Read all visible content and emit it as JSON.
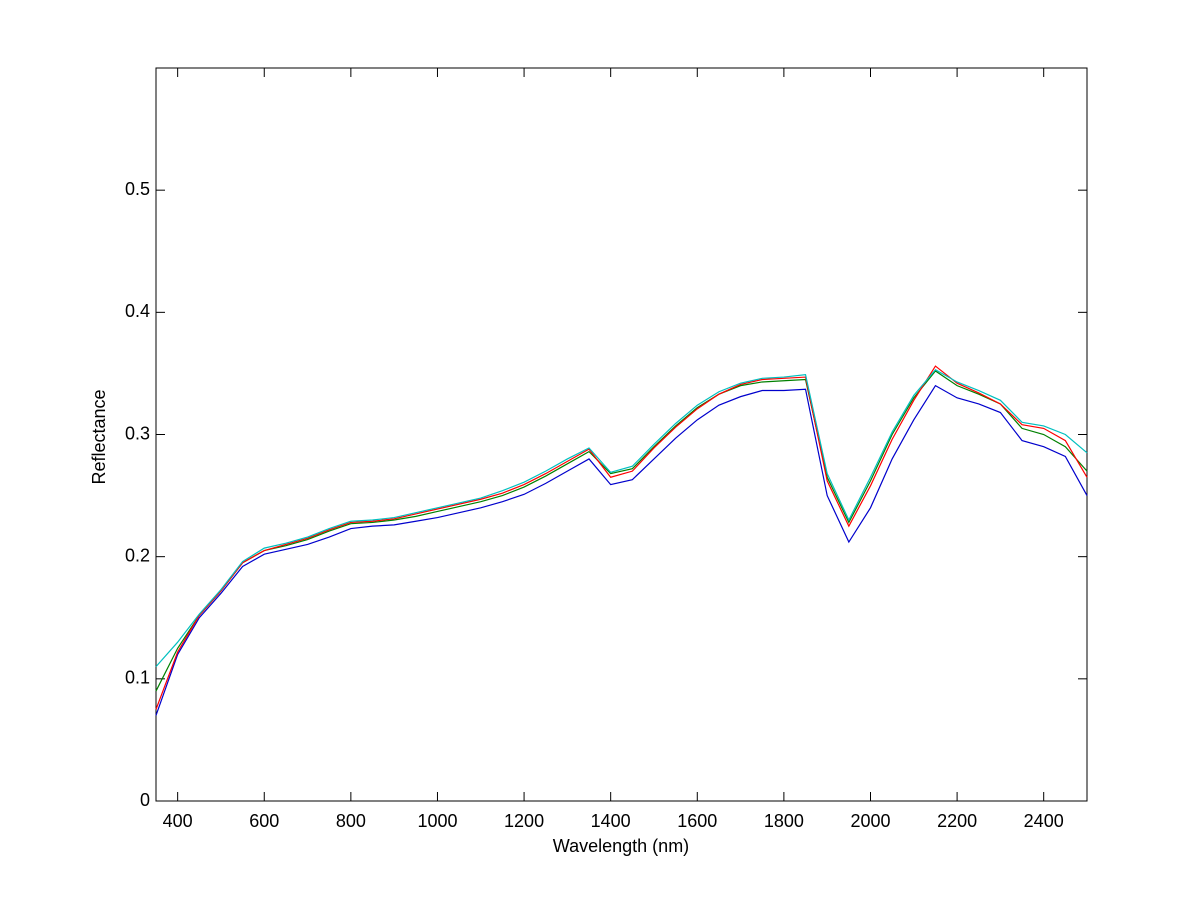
{
  "chart_data": {
    "type": "line",
    "x_label": "Wavelength (nm)",
    "y_label": "Reflectance",
    "x": [
      350,
      400,
      450,
      500,
      550,
      600,
      650,
      700,
      750,
      800,
      850,
      900,
      950,
      1000,
      1050,
      1100,
      1150,
      1200,
      1250,
      1300,
      1350,
      1400,
      1450,
      1500,
      1550,
      1600,
      1650,
      1700,
      1750,
      1800,
      1850,
      1900,
      1950,
      2000,
      2050,
      2100,
      2150,
      2200,
      2250,
      2300,
      2350,
      2400,
      2450,
      2500
    ],
    "series": [
      {
        "color": "#0000cc",
        "values": [
          0.07,
          0.12,
          0.15,
          0.17,
          0.192,
          0.202,
          0.206,
          0.21,
          0.216,
          0.223,
          0.225,
          0.226,
          0.229,
          0.232,
          0.236,
          0.24,
          0.245,
          0.251,
          0.26,
          0.27,
          0.28,
          0.259,
          0.263,
          0.28,
          0.297,
          0.312,
          0.324,
          0.331,
          0.336,
          0.336,
          0.337,
          0.25,
          0.212,
          0.24,
          0.28,
          0.312,
          0.34,
          0.33,
          0.325,
          0.318,
          0.295,
          0.29,
          0.282,
          0.25
        ]
      },
      {
        "color": "#008000",
        "values": [
          0.09,
          0.125,
          0.152,
          0.172,
          0.195,
          0.205,
          0.209,
          0.214,
          0.221,
          0.227,
          0.228,
          0.23,
          0.233,
          0.237,
          0.241,
          0.245,
          0.25,
          0.257,
          0.266,
          0.276,
          0.286,
          0.268,
          0.272,
          0.29,
          0.307,
          0.322,
          0.333,
          0.34,
          0.343,
          0.344,
          0.345,
          0.265,
          0.228,
          0.262,
          0.3,
          0.33,
          0.352,
          0.34,
          0.333,
          0.325,
          0.305,
          0.3,
          0.29,
          0.27
        ]
      },
      {
        "color": "#ff0000",
        "values": [
          0.075,
          0.122,
          0.152,
          0.172,
          0.195,
          0.205,
          0.21,
          0.215,
          0.222,
          0.228,
          0.229,
          0.231,
          0.235,
          0.239,
          0.243,
          0.247,
          0.252,
          0.259,
          0.268,
          0.278,
          0.288,
          0.265,
          0.27,
          0.289,
          0.306,
          0.321,
          0.333,
          0.341,
          0.345,
          0.346,
          0.347,
          0.262,
          0.225,
          0.258,
          0.296,
          0.328,
          0.356,
          0.342,
          0.334,
          0.325,
          0.308,
          0.305,
          0.295,
          0.265
        ]
      },
      {
        "color": "#00bfbf",
        "values": [
          0.11,
          0.13,
          0.153,
          0.173,
          0.196,
          0.207,
          0.211,
          0.216,
          0.223,
          0.229,
          0.23,
          0.232,
          0.236,
          0.24,
          0.244,
          0.248,
          0.254,
          0.261,
          0.27,
          0.28,
          0.289,
          0.269,
          0.274,
          0.292,
          0.309,
          0.324,
          0.335,
          0.342,
          0.346,
          0.347,
          0.349,
          0.268,
          0.23,
          0.265,
          0.302,
          0.332,
          0.353,
          0.343,
          0.336,
          0.328,
          0.31,
          0.307,
          0.3,
          0.285
        ]
      }
    ],
    "xlim": [
      350,
      2500
    ],
    "xticks": [
      400,
      600,
      800,
      1000,
      1200,
      1400,
      1600,
      1800,
      2000,
      2200,
      2400
    ],
    "ylim": [
      0,
      0.6
    ],
    "yticks": [
      0,
      0.1,
      0.2,
      0.3,
      0.4,
      0.5
    ],
    "grid": false
  }
}
